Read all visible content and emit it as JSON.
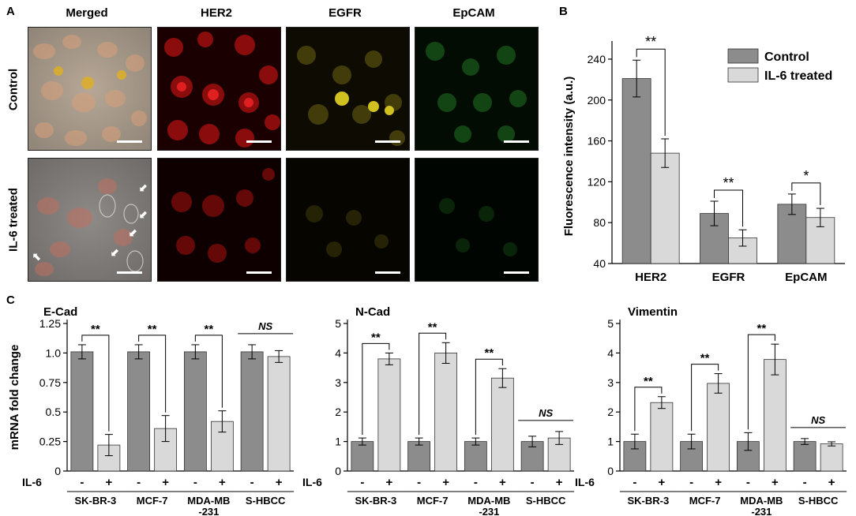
{
  "panel_a": {
    "letter": "A",
    "columns": [
      "Merged",
      "HER2",
      "EGFR",
      "EpCAM"
    ],
    "rows": [
      "Control",
      "IL-6 treated"
    ],
    "tile_colors": {
      "merged": "#9a8c80",
      "HER2": "#8f0a0a",
      "EGFR": "#5a5410",
      "EpCAM": "#0f3d10",
      "merged_il6": "#7d7a78",
      "HER2_il6": "#4a0606",
      "EGFR_il6": "#222008",
      "EpCAM_il6": "#061606"
    }
  },
  "panel_b": {
    "letter": "B"
  },
  "panel_c": {
    "letter": "C"
  },
  "chart_data": [
    {
      "id": "B",
      "type": "bar",
      "categories": [
        "HER2",
        "EGFR",
        "EpCAM"
      ],
      "series": [
        {
          "name": "Control",
          "values": [
            221,
            89,
            98
          ],
          "errors": [
            18,
            12,
            10
          ],
          "color": "#8c8c8c"
        },
        {
          "name": "IL-6 treated",
          "values": [
            148,
            65,
            85
          ],
          "errors": [
            14,
            8,
            9
          ],
          "color": "#d9d9d9"
        }
      ],
      "ylabel": "Fluorescence intensity (a.u.)",
      "ylim": [
        40,
        250
      ],
      "yticks": [
        "40",
        "80",
        "120",
        "160",
        "200",
        "240"
      ],
      "yticks_values": [
        40,
        80,
        120,
        160,
        200,
        240
      ],
      "significance": [
        "**",
        "**",
        "*"
      ],
      "legend_position": "top-right"
    },
    {
      "id": "C1",
      "type": "bar",
      "title": "E-Cad",
      "ylabel": "mRNA fold change",
      "categories": [
        "SK-BR-3",
        "MCF-7",
        "MDA-MB\n-231",
        "S-HBCC"
      ],
      "treatment_row_label": "IL-6",
      "treatment_marks": [
        "-",
        "+"
      ],
      "series": [
        {
          "name": "-",
          "values": [
            1.01,
            1.01,
            1.01,
            1.01
          ],
          "errors": [
            0.06,
            0.06,
            0.06,
            0.06
          ],
          "color": "#8c8c8c"
        },
        {
          "name": "+",
          "values": [
            0.22,
            0.36,
            0.42,
            0.97
          ],
          "errors": [
            0.09,
            0.11,
            0.09,
            0.05
          ],
          "color": "#d9d9d9"
        }
      ],
      "ylim": [
        0,
        1.25
      ],
      "yticks": [
        "0",
        "0.25",
        "0.5",
        "0.75",
        "1.0",
        "1.25"
      ],
      "yticks_values": [
        0,
        0.25,
        0.5,
        0.75,
        1.0,
        1.25
      ],
      "significance": [
        "**",
        "**",
        "**",
        "NS"
      ]
    },
    {
      "id": "C2",
      "type": "bar",
      "title": "N-Cad",
      "categories": [
        "SK-BR-3",
        "MCF-7",
        "MDA-MB\n-231",
        "S-HBCC"
      ],
      "treatment_row_label": "IL-6",
      "treatment_marks": [
        "-",
        "+"
      ],
      "series": [
        {
          "name": "-",
          "values": [
            1.0,
            1.0,
            1.0,
            1.0
          ],
          "errors": [
            0.12,
            0.12,
            0.12,
            0.18
          ],
          "color": "#8c8c8c"
        },
        {
          "name": "+",
          "values": [
            3.8,
            4.0,
            3.15,
            1.12
          ],
          "errors": [
            0.2,
            0.35,
            0.32,
            0.22
          ],
          "color": "#d9d9d9"
        }
      ],
      "ylim": [
        0,
        5
      ],
      "yticks": [
        "0",
        "1",
        "2",
        "3",
        "4",
        "5"
      ],
      "yticks_values": [
        0,
        1,
        2,
        3,
        4,
        5
      ],
      "significance": [
        "**",
        "**",
        "**",
        "NS"
      ]
    },
    {
      "id": "C3",
      "type": "bar",
      "title": "Vimentin",
      "categories": [
        "SK-BR-3",
        "MCF-7",
        "MDA-MB\n-231",
        "S-HBCC"
      ],
      "treatment_row_label": "IL-6",
      "treatment_marks": [
        "-",
        "+"
      ],
      "series": [
        {
          "name": "-",
          "values": [
            1.0,
            1.0,
            1.0,
            1.0
          ],
          "errors": [
            0.25,
            0.25,
            0.3,
            0.1
          ],
          "color": "#8c8c8c"
        },
        {
          "name": "+",
          "values": [
            2.32,
            2.97,
            3.78,
            0.92
          ],
          "errors": [
            0.2,
            0.33,
            0.52,
            0.07
          ],
          "color": "#d9d9d9"
        }
      ],
      "ylim": [
        0,
        5
      ],
      "yticks": [
        "0",
        "1",
        "2",
        "3",
        "4",
        "5"
      ],
      "yticks_values": [
        0,
        1,
        2,
        3,
        4,
        5
      ],
      "significance": [
        "**",
        "**",
        "**",
        "NS"
      ]
    }
  ]
}
